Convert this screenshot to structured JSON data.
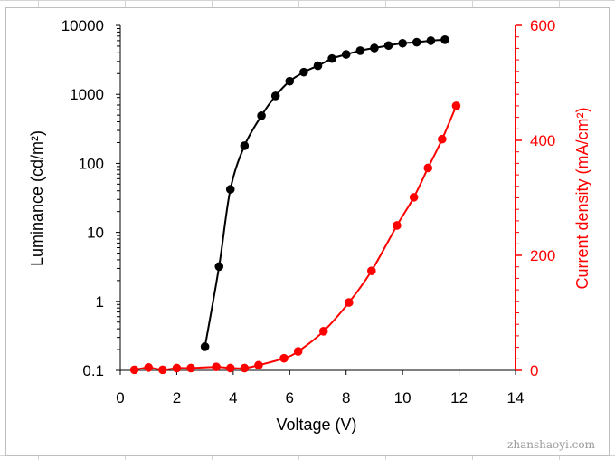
{
  "chart_data": {
    "type": "line",
    "title": "",
    "xlabel": "Voltage (V)",
    "ylabel_left": "Luminance (cd/m²)",
    "ylabel_right": "Current density (mA/cm²)",
    "xlim": [
      0,
      14
    ],
    "x_ticks": [
      "0",
      "2",
      "4",
      "6",
      "8",
      "10",
      "12",
      "14"
    ],
    "y_left_scale": "log",
    "y_left_lim": [
      0.1,
      10000
    ],
    "y_left_ticks": [
      "0.1",
      "1",
      "10",
      "100",
      "1000",
      "10000"
    ],
    "y_right_lim": [
      0,
      600
    ],
    "y_right_ticks": [
      "0",
      "200",
      "400",
      "600"
    ],
    "grid": false,
    "legend": "none",
    "series": [
      {
        "axis": "left",
        "color": "#000000",
        "marker": "circle",
        "x": [
          3.0,
          3.5,
          3.9,
          4.4,
          5.0,
          5.5,
          6.0,
          6.5,
          7.0,
          7.5,
          8.0,
          8.5,
          9.0,
          9.5,
          10.0,
          10.5,
          11.0,
          11.5
        ],
        "y": [
          0.22,
          3.2,
          42,
          180,
          490,
          950,
          1550,
          2100,
          2600,
          3300,
          3800,
          4300,
          4700,
          5100,
          5500,
          5700,
          6000,
          6200
        ]
      },
      {
        "axis": "right",
        "color": "#ff0000",
        "marker": "circle",
        "x": [
          0.5,
          1.0,
          1.5,
          2.0,
          2.5,
          3.4,
          3.9,
          4.4,
          4.9,
          5.8,
          6.3,
          7.2,
          8.1,
          8.9,
          9.8,
          10.4,
          10.9,
          11.4,
          11.9
        ],
        "y": [
          1,
          5,
          1,
          4,
          4,
          6,
          4,
          4,
          9,
          21,
          33,
          68,
          118,
          173,
          252,
          301,
          352,
          402,
          460
        ]
      }
    ]
  },
  "watermark": "zhanshaoyi.com"
}
